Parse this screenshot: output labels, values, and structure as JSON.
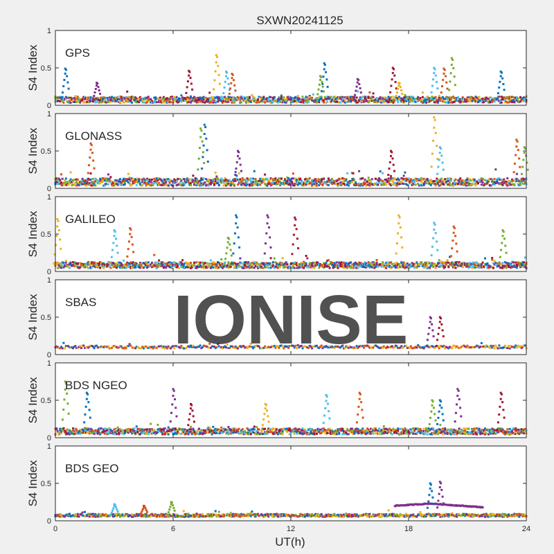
{
  "figure": {
    "title": "SXWN20241125",
    "watermark": "IONISE",
    "xlabel": "UT(h)"
  },
  "colors": [
    "#0072BD",
    "#D95319",
    "#EDB120",
    "#7E2F8E",
    "#77AC30",
    "#4DBEEE",
    "#A2142F"
  ],
  "chart_data": [
    {
      "type": "scatter",
      "label": "GPS",
      "ylabel": "S4 Index",
      "xlim": [
        0,
        24
      ],
      "ylim": [
        0,
        1
      ],
      "x_ticks": [
        0,
        6,
        12,
        18,
        24
      ],
      "y_ticks": [
        0,
        0.5,
        1
      ],
      "baseline": 0.07,
      "noise": 0.04,
      "n_sats": 10,
      "spikes": [
        [
          0.5,
          0.49
        ],
        [
          2.1,
          0.3
        ],
        [
          6.8,
          0.46
        ],
        [
          8.2,
          0.67
        ],
        [
          8.7,
          0.45
        ],
        [
          9.0,
          0.42
        ],
        [
          13.5,
          0.39
        ],
        [
          13.7,
          0.56
        ],
        [
          15.4,
          0.35
        ],
        [
          17.2,
          0.5
        ],
        [
          17.5,
          0.3
        ],
        [
          19.3,
          0.5
        ],
        [
          19.8,
          0.49
        ],
        [
          20.2,
          0.63
        ],
        [
          22.7,
          0.45
        ]
      ]
    },
    {
      "type": "scatter",
      "label": "GLONASS",
      "ylabel": "S4 Index",
      "xlim": [
        0,
        24
      ],
      "ylim": [
        0,
        1
      ],
      "x_ticks": [
        0,
        6,
        12,
        18,
        24
      ],
      "y_ticks": [
        0,
        0.5,
        1
      ],
      "baseline": 0.08,
      "noise": 0.05,
      "n_sats": 10,
      "spikes": [
        [
          1.8,
          0.6
        ],
        [
          7.4,
          0.8
        ],
        [
          7.6,
          0.85
        ],
        [
          9.3,
          0.5
        ],
        [
          17.1,
          0.5
        ],
        [
          19.3,
          0.95
        ],
        [
          19.6,
          0.55
        ],
        [
          23.5,
          0.65
        ],
        [
          23.9,
          0.55
        ]
      ]
    },
    {
      "type": "scatter",
      "label": "GALILEO",
      "ylabel": "S4 Index",
      "xlim": [
        0,
        24
      ],
      "ylim": [
        0,
        1
      ],
      "x_ticks": [
        0,
        6,
        12,
        18,
        24
      ],
      "y_ticks": [
        0,
        0.5,
        1
      ],
      "baseline": 0.08,
      "noise": 0.04,
      "n_sats": 10,
      "spikes": [
        [
          0.1,
          0.7
        ],
        [
          3.0,
          0.55
        ],
        [
          3.8,
          0.58
        ],
        [
          8.8,
          0.45
        ],
        [
          9.2,
          0.75
        ],
        [
          10.8,
          0.75
        ],
        [
          12.2,
          0.72
        ],
        [
          17.5,
          0.75
        ],
        [
          19.3,
          0.65
        ],
        [
          20.3,
          0.6
        ],
        [
          22.8,
          0.55
        ]
      ]
    },
    {
      "type": "scatter",
      "label": "SBAS",
      "ylabel": "S4 Index",
      "xlim": [
        0,
        24
      ],
      "ylim": [
        0,
        1
      ],
      "x_ticks": [
        0,
        6,
        12,
        18,
        24
      ],
      "y_ticks": [
        0,
        0.5,
        1
      ],
      "baseline": 0.1,
      "noise": 0.02,
      "n_sats": 4,
      "spikes": [
        [
          19.1,
          0.5
        ],
        [
          19.6,
          0.5
        ]
      ]
    },
    {
      "type": "scatter",
      "label": "BDS NGEO",
      "ylabel": "S4 Index",
      "xlim": [
        0,
        24
      ],
      "ylim": [
        0,
        1
      ],
      "x_ticks": [
        0,
        6,
        12,
        18,
        24
      ],
      "y_ticks": [
        0,
        0.5,
        1
      ],
      "baseline": 0.08,
      "noise": 0.04,
      "n_sats": 10,
      "spikes": [
        [
          0.5,
          0.75
        ],
        [
          1.6,
          0.6
        ],
        [
          6.0,
          0.65
        ],
        [
          6.9,
          0.45
        ],
        [
          10.7,
          0.45
        ],
        [
          13.8,
          0.57
        ],
        [
          15.5,
          0.6
        ],
        [
          19.2,
          0.5
        ],
        [
          19.6,
          0.5
        ],
        [
          20.5,
          0.65
        ],
        [
          22.7,
          0.6
        ]
      ]
    },
    {
      "type": "scatter",
      "label": "BDS GEO",
      "ylabel": "S4 Index",
      "xlim": [
        0,
        24
      ],
      "ylim": [
        0,
        1
      ],
      "x_ticks": [
        0,
        6,
        12,
        18,
        24
      ],
      "y_ticks": [
        0,
        0.5,
        1
      ],
      "baseline": 0.07,
      "noise": 0.02,
      "n_sats": 5,
      "spikes": [
        [
          3.0,
          0.22
        ],
        [
          4.5,
          0.2
        ],
        [
          5.9,
          0.25
        ],
        [
          19.1,
          0.5
        ],
        [
          19.6,
          0.52
        ]
      ],
      "arc": {
        "x_start": 17.3,
        "x_end": 21.8,
        "y_start": 0.2,
        "y_peak": 0.23,
        "y_end": 0.18
      }
    }
  ]
}
